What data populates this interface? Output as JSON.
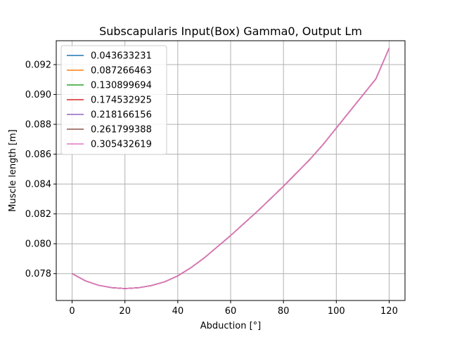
{
  "chart_data": {
    "type": "line",
    "title": "Subscapularis Input(Box) Gamma0, Output Lm",
    "xlabel": "Abduction [°]",
    "ylabel": "Muscle length [m]",
    "xlim": [
      -6,
      126
    ],
    "ylim": [
      0.0762,
      0.0936
    ],
    "xticks": [
      0,
      20,
      40,
      60,
      80,
      100,
      120
    ],
    "xtick_labels": [
      "0",
      "20",
      "40",
      "60",
      "80",
      "100",
      "120"
    ],
    "yticks": [
      0.078,
      0.08,
      0.082,
      0.084,
      0.086,
      0.088,
      0.09,
      0.092
    ],
    "ytick_labels": [
      "0.078",
      "0.080",
      "0.082",
      "0.084",
      "0.086",
      "0.088",
      "0.090",
      "0.092"
    ],
    "grid": true,
    "legend_position": "top-left",
    "x": [
      0,
      5,
      10,
      15,
      20,
      25,
      30,
      35,
      40,
      45,
      50,
      55,
      60,
      65,
      70,
      75,
      80,
      85,
      90,
      95,
      100,
      105,
      110,
      115,
      120
    ],
    "series": [
      {
        "name": "0.043633231",
        "color": "#1f77b4",
        "values": [
          0.078,
          0.07752,
          0.07722,
          0.07706,
          0.077,
          0.07705,
          0.0772,
          0.07745,
          0.07785,
          0.0784,
          0.07905,
          0.0798,
          0.08055,
          0.08135,
          0.08215,
          0.083,
          0.08385,
          0.08475,
          0.08565,
          0.08665,
          0.08775,
          0.08885,
          0.08995,
          0.09105,
          0.0931
        ]
      },
      {
        "name": "0.087266463",
        "color": "#ff7f0e",
        "values": [
          0.078,
          0.07752,
          0.07722,
          0.07706,
          0.077,
          0.07705,
          0.0772,
          0.07745,
          0.07785,
          0.0784,
          0.07905,
          0.0798,
          0.08055,
          0.08135,
          0.08215,
          0.083,
          0.08385,
          0.08475,
          0.08565,
          0.08665,
          0.08775,
          0.08885,
          0.08995,
          0.09105,
          0.0931
        ]
      },
      {
        "name": "0.130899694",
        "color": "#2ca02c",
        "values": [
          0.078,
          0.07752,
          0.07722,
          0.07706,
          0.077,
          0.07705,
          0.0772,
          0.07745,
          0.07785,
          0.0784,
          0.07905,
          0.0798,
          0.08055,
          0.08135,
          0.08215,
          0.083,
          0.08385,
          0.08475,
          0.08565,
          0.08665,
          0.08775,
          0.08885,
          0.08995,
          0.09105,
          0.0931
        ]
      },
      {
        "name": "0.174532925",
        "color": "#d62728",
        "values": [
          0.078,
          0.07752,
          0.07722,
          0.07706,
          0.077,
          0.07705,
          0.0772,
          0.07745,
          0.07785,
          0.0784,
          0.07905,
          0.0798,
          0.08055,
          0.08135,
          0.08215,
          0.083,
          0.08385,
          0.08475,
          0.08565,
          0.08665,
          0.08775,
          0.08885,
          0.08995,
          0.09105,
          0.0931
        ]
      },
      {
        "name": "0.218166156",
        "color": "#9467bd",
        "values": [
          0.078,
          0.07752,
          0.07722,
          0.07706,
          0.077,
          0.07705,
          0.0772,
          0.07745,
          0.07785,
          0.0784,
          0.07905,
          0.0798,
          0.08055,
          0.08135,
          0.08215,
          0.083,
          0.08385,
          0.08475,
          0.08565,
          0.08665,
          0.08775,
          0.08885,
          0.08995,
          0.09105,
          0.0931
        ]
      },
      {
        "name": "0.261799388",
        "color": "#8c564b",
        "values": [
          0.078,
          0.07752,
          0.07722,
          0.07706,
          0.077,
          0.07705,
          0.0772,
          0.07745,
          0.07785,
          0.0784,
          0.07905,
          0.0798,
          0.08055,
          0.08135,
          0.08215,
          0.083,
          0.08385,
          0.08475,
          0.08565,
          0.08665,
          0.08775,
          0.08885,
          0.08995,
          0.09105,
          0.0931
        ]
      },
      {
        "name": "0.305432619",
        "color": "#e377c2",
        "values": [
          0.078,
          0.07752,
          0.07722,
          0.07706,
          0.077,
          0.07705,
          0.0772,
          0.07745,
          0.07785,
          0.0784,
          0.07905,
          0.0798,
          0.08055,
          0.08135,
          0.08215,
          0.083,
          0.08385,
          0.08475,
          0.08565,
          0.08665,
          0.08775,
          0.08885,
          0.08995,
          0.09105,
          0.0931
        ]
      }
    ]
  }
}
